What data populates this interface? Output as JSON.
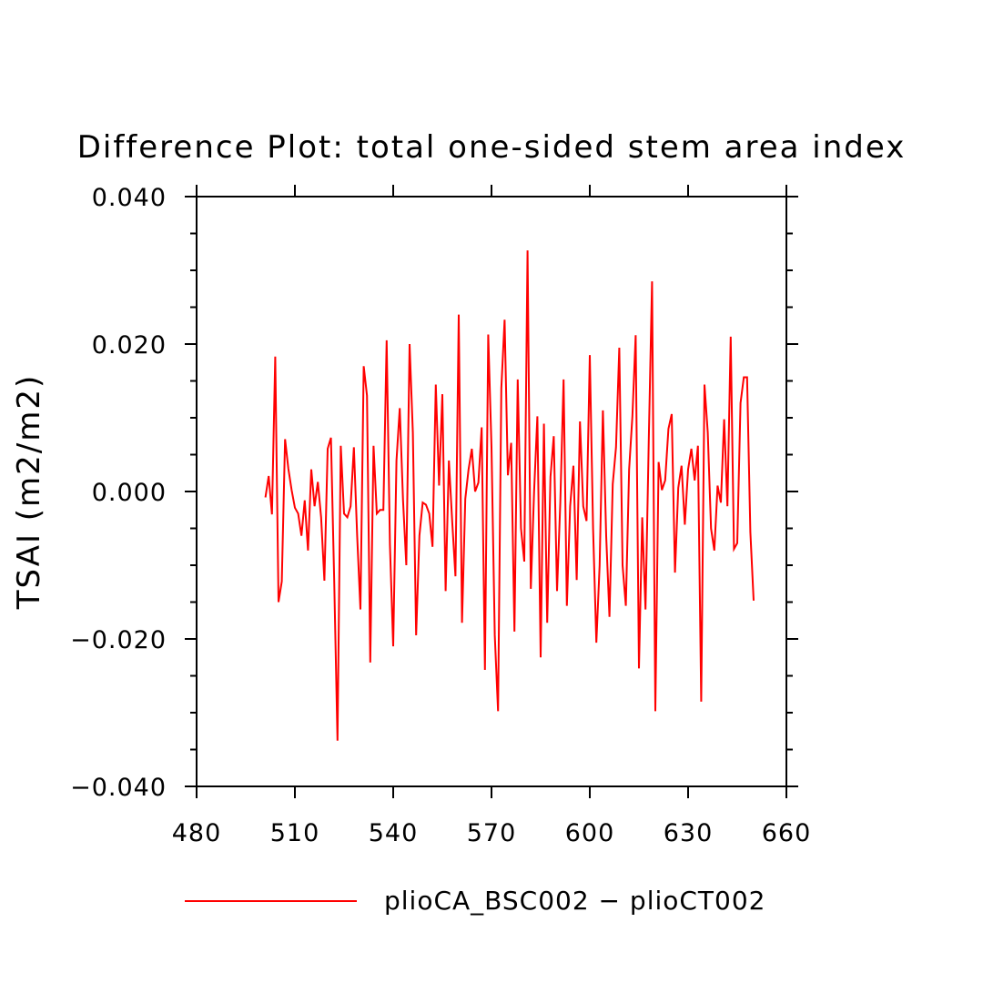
{
  "chart_data": {
    "type": "line",
    "title": "Difference Plot: total one-sided stem area index",
    "xlabel": "",
    "ylabel": "TSAI  (m2/m2)",
    "xlim": [
      480,
      660
    ],
    "ylim": [
      -0.04,
      0.04
    ],
    "x_ticks": [
      480,
      510,
      540,
      570,
      600,
      630,
      660
    ],
    "x_tick_labels": [
      "480",
      "510",
      "540",
      "570",
      "600",
      "630",
      "660"
    ],
    "y_ticks": [
      -0.04,
      -0.02,
      0.0,
      0.02,
      0.04
    ],
    "y_tick_labels": [
      "−0.040",
      "−0.020",
      "0.000",
      "0.020",
      "0.040"
    ],
    "grid": false,
    "legend_position": "bottom",
    "series": [
      {
        "name": "plioCA_BSC002 − plioCT002",
        "color": "#ff0000",
        "x_start": 501,
        "x_step": 1,
        "values": [
          -0.0008,
          0.0021,
          -0.0031,
          0.0183,
          -0.015,
          -0.0122,
          0.0071,
          0.0031,
          0.0002,
          -0.0022,
          -0.003,
          -0.006,
          -0.0012,
          -0.008,
          0.003,
          -0.002,
          0.0013,
          -0.0035,
          -0.0121,
          0.0058,
          0.0073,
          -0.0122,
          -0.0338,
          0.0062,
          -0.003,
          -0.0035,
          -0.002,
          0.006,
          -0.006,
          -0.016,
          0.017,
          0.013,
          -0.0232,
          0.0062,
          -0.003,
          -0.0025,
          -0.0025,
          0.0205,
          -0.0072,
          -0.021,
          0.0042,
          0.0113,
          -0.0012,
          -0.01,
          0.02,
          0.008,
          -0.0195,
          -0.006,
          -0.0015,
          -0.0018,
          -0.003,
          -0.0075,
          0.0145,
          0.0008,
          0.0132,
          -0.0135,
          0.0042,
          -0.004,
          -0.0115,
          0.024,
          -0.0178,
          -0.001,
          0.003,
          0.0058,
          0.0,
          0.0012,
          0.0087,
          -0.0242,
          0.0213,
          0.006,
          -0.0195,
          -0.0298,
          0.014,
          0.0233,
          0.0022,
          0.0066,
          -0.019,
          0.0152,
          -0.005,
          -0.0095,
          0.0327,
          -0.0132,
          0.0,
          0.0102,
          -0.0225,
          0.0092,
          -0.0178,
          0.002,
          0.0075,
          -0.0135,
          -0.0015,
          0.0152,
          -0.0155,
          -0.002,
          0.0035,
          -0.012,
          0.0095,
          -0.002,
          -0.004,
          0.0185,
          -0.005,
          -0.0205,
          -0.01,
          0.011,
          -0.006,
          -0.017,
          0.001,
          0.006,
          0.0195,
          -0.01,
          -0.0155,
          0.003,
          0.0102,
          0.0212,
          -0.024,
          -0.0035,
          -0.016,
          0.007,
          0.0285,
          -0.0298,
          0.004,
          0.0002,
          0.0015,
          0.0085,
          0.0105,
          -0.011,
          0.0005,
          0.0035,
          -0.0045,
          0.003,
          0.0058,
          0.0015,
          0.0062,
          -0.0285,
          0.0145,
          0.008,
          -0.005,
          -0.008,
          0.0008,
          -0.0015,
          0.0098,
          -0.002,
          0.021,
          -0.0078,
          -0.007,
          0.012,
          0.0155,
          0.0155,
          -0.0055,
          -0.0148
        ]
      }
    ]
  }
}
